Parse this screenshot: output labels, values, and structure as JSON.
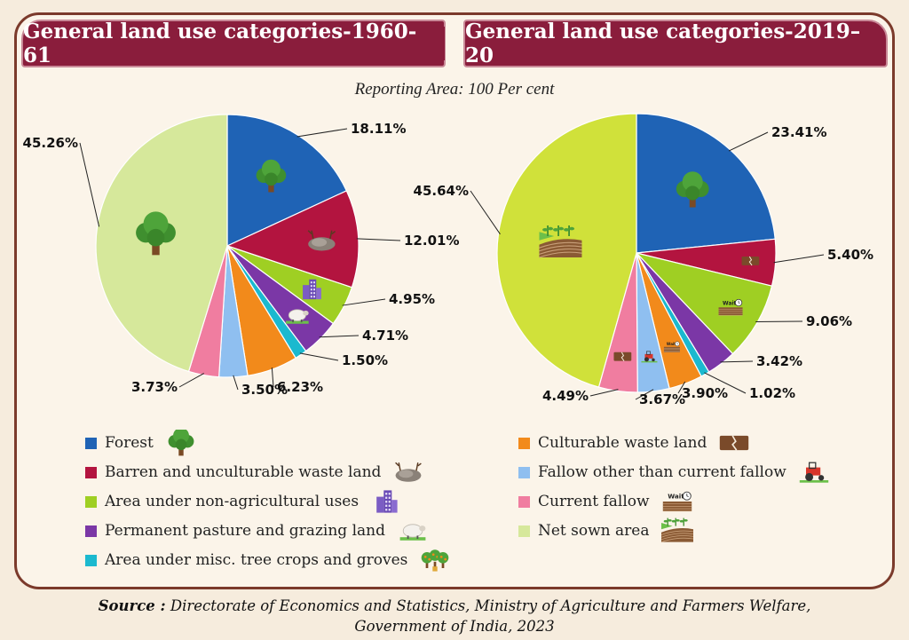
{
  "header": {
    "left_title": "General land use categories-1960-61",
    "right_title": "General land use categories-2019–20",
    "subtitle": "Reporting Area: 100 Per cent"
  },
  "chart_data": [
    {
      "type": "pie",
      "title": "General land use categories-1960-61",
      "slices": [
        {
          "label": "Forest",
          "value": 18.11,
          "text": "18.11%",
          "color": "#1f63b5"
        },
        {
          "label": "Barren and unculturable waste land",
          "value": 12.01,
          "text": "12.01%",
          "color": "#b3143f"
        },
        {
          "label": "Area under non-agricultural uses",
          "value": 4.95,
          "text": "4.95%",
          "color": "#9fcf23"
        },
        {
          "label": "Permanent pasture and grazing land",
          "value": 4.71,
          "text": "4.71%",
          "color": "#7b37a6"
        },
        {
          "label": "Area under misc. tree crops and groves",
          "value": 1.5,
          "text": "1.50%",
          "color": "#1bb9cf"
        },
        {
          "label": "Culturable waste land",
          "value": 6.23,
          "text": "6.23%",
          "color": "#f28a1b"
        },
        {
          "label": "Fallow other than current fallow",
          "value": 3.5,
          "text": "3.50%",
          "color": "#8fbff0"
        },
        {
          "label": "Current fallow",
          "value": 3.73,
          "text": "3.73%",
          "color": "#f07da0"
        },
        {
          "label": "Net sown area",
          "value": 45.26,
          "text": "45.26%",
          "color": "#d6e89b"
        }
      ]
    },
    {
      "type": "pie",
      "title": "General land use categories-2019–20",
      "slices": [
        {
          "label": "Forest",
          "value": 23.41,
          "text": "23.41%",
          "color": "#1f63b5"
        },
        {
          "label": "Barren and unculturable waste land",
          "value": 5.4,
          "text": "5.40%",
          "color": "#b3143f"
        },
        {
          "label": "Area under non-agricultural uses",
          "value": 9.06,
          "text": "9.06%",
          "color": "#9fcf23"
        },
        {
          "label": "Permanent pasture and grazing land",
          "value": 3.42,
          "text": "3.42%",
          "color": "#7b37a6"
        },
        {
          "label": "Area under misc. tree crops and groves",
          "value": 1.02,
          "text": "1.02%",
          "color": "#1bb9cf"
        },
        {
          "label": "Culturable waste land",
          "value": 3.9,
          "text": "3.90%",
          "color": "#f28a1b"
        },
        {
          "label": "Fallow other than current fallow",
          "value": 3.67,
          "text": "3.67%",
          "color": "#8fbff0"
        },
        {
          "label": "Current fallow",
          "value": 4.49,
          "text": "4.49%",
          "color": "#f07da0"
        },
        {
          "label": "Net sown area",
          "value": 45.64,
          "text": "45.64%",
          "color": "#d0e13a"
        }
      ]
    }
  ],
  "legend": {
    "left_column": [
      {
        "label": "Forest",
        "color": "#1f63b5",
        "icon": "tree-icon"
      },
      {
        "label": "Barren and unculturable waste land",
        "color": "#b3143f",
        "icon": "rock-icon"
      },
      {
        "label": "Area under non-agricultural uses",
        "color": "#9fcf23",
        "icon": "building-icon"
      },
      {
        "label": "Permanent pasture and grazing land",
        "color": "#7b37a6",
        "icon": "sheep-icon"
      },
      {
        "label": "Area under misc. tree crops and groves",
        "color": "#1bb9cf",
        "icon": "groves-icon"
      }
    ],
    "right_column": [
      {
        "label": "Culturable waste land",
        "color": "#f28a1b",
        "icon": "cracked-land-icon"
      },
      {
        "label": "Fallow other than current fallow",
        "color": "#8fbff0",
        "icon": "tractor-icon"
      },
      {
        "label": "Current fallow",
        "color": "#f07da0",
        "icon": "wait-field-icon"
      },
      {
        "label": "Net sown area",
        "color": "#d6e89b",
        "icon": "sown-field-icon"
      }
    ],
    "wait_text": "Wait"
  },
  "source": {
    "prefix": "Source :",
    "line1": "Directorate of Economics and Statistics, Ministry of Agriculture and Farmers Welfare,",
    "line2": "Government of India, 2023"
  }
}
